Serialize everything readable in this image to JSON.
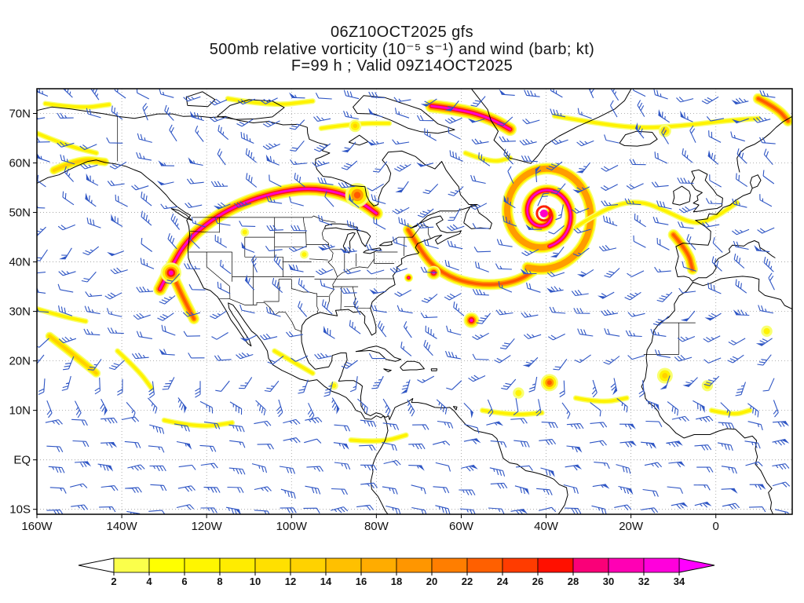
{
  "title": {
    "line1": "06Z10OCT2025 gfs",
    "line2": "500mb relative vorticity (10⁻⁵ s⁻¹) and wind (barb; kt)",
    "line3": "F=99 h ; Valid 09Z14OCT2025"
  },
  "axes": {
    "lat_ticks": [
      {
        "label": "70N",
        "deg": 70
      },
      {
        "label": "60N",
        "deg": 60
      },
      {
        "label": "50N",
        "deg": 50
      },
      {
        "label": "40N",
        "deg": 40
      },
      {
        "label": "30N",
        "deg": 30
      },
      {
        "label": "20N",
        "deg": 20
      },
      {
        "label": "10N",
        "deg": 10
      },
      {
        "label": "EQ",
        "deg": 0
      },
      {
        "label": "10S",
        "deg": -10
      }
    ],
    "lon_ticks": [
      {
        "label": "160W",
        "deg": -160
      },
      {
        "label": "140W",
        "deg": -140
      },
      {
        "label": "120W",
        "deg": -120
      },
      {
        "label": "100W",
        "deg": -100
      },
      {
        "label": "80W",
        "deg": -80
      },
      {
        "label": "60W",
        "deg": -60
      },
      {
        "label": "40W",
        "deg": -40
      },
      {
        "label": "20W",
        "deg": -20
      },
      {
        "label": "0",
        "deg": 0
      }
    ]
  },
  "colorbar": {
    "values": [
      "2",
      "4",
      "6",
      "8",
      "10",
      "12",
      "14",
      "16",
      "18",
      "20",
      "22",
      "24",
      "26",
      "28",
      "30",
      "32",
      "34"
    ],
    "segment_colors": [
      "#FBFF4B",
      "#FFFF00",
      "#FFF600",
      "#FFEC00",
      "#FFE000",
      "#FFD200",
      "#FFC000",
      "#FFAC00",
      "#FF9600",
      "#FF7E00",
      "#FF6000",
      "#FF3C00",
      "#FF1000",
      "#FA0078",
      "#FF00B4",
      "#FF00DC"
    ],
    "below_min_color": "#FFFFFF",
    "above_max_color": "#FF00FF"
  },
  "style": {
    "barb_color": "#2E55C4",
    "grid_color": "#9A9A9A",
    "coast_color": "#000000",
    "frame_color": "#000000",
    "text_color": "#111111"
  },
  "chart_data": {
    "type": "heatmap",
    "model": "gfs",
    "init": "06Z10OCT2025",
    "forecast_hour": "F=99 h",
    "valid": "09Z14OCT2025",
    "level": "500mb",
    "variable": "relative vorticity",
    "units": "10⁻⁵ s⁻¹",
    "wind": {
      "style": "barb",
      "units": "kt"
    },
    "lon_range": [
      -160,
      18
    ],
    "lat_range": [
      -11,
      75
    ],
    "grid_interval_deg": {
      "lat": 10,
      "lon": 20
    },
    "colorbar_levels": [
      2,
      4,
      6,
      8,
      10,
      12,
      14,
      16,
      18,
      20,
      22,
      24,
      26,
      28,
      30,
      32,
      34
    ],
    "vorticity_features": [
      {
        "kind": "streak",
        "intensity": 4,
        "pts": [
          [
            -131,
            34.5
          ],
          [
            -128.6,
            38.5
          ],
          [
            -125,
            44
          ],
          [
            -119,
            48.5
          ],
          [
            -112,
            51.8
          ],
          [
            -104,
            54
          ],
          [
            -96,
            55
          ],
          [
            -88.5,
            54
          ],
          [
            -83.5,
            52
          ],
          [
            -80,
            49.8
          ]
        ]
      },
      {
        "kind": "streak",
        "intensity": 3,
        "pts": [
          [
            -128.6,
            38.5
          ],
          [
            -126.5,
            34.5
          ],
          [
            -124.5,
            31
          ],
          [
            -123,
            28.5
          ]
        ]
      },
      {
        "kind": "blob",
        "intensity": 4,
        "size": 6,
        "center": [
          -128.4,
          37.8
        ]
      },
      {
        "kind": "blob",
        "intensity": 3,
        "size": 7,
        "center": [
          -84.5,
          53.5
        ]
      },
      {
        "kind": "streak",
        "intensity": 2,
        "pts": [
          [
            -156,
            58.5
          ],
          [
            -150,
            60.8
          ],
          [
            -144,
            60.2
          ]
        ]
      },
      {
        "kind": "streak",
        "intensity": 1,
        "pts": [
          [
            -160,
            66
          ],
          [
            -153,
            63.5
          ],
          [
            -146,
            62
          ]
        ]
      },
      {
        "kind": "streak",
        "intensity": 1,
        "pts": [
          [
            -158,
            72
          ],
          [
            -150,
            71
          ],
          [
            -143,
            71.8
          ]
        ]
      },
      {
        "kind": "streak",
        "intensity": 1,
        "pts": [
          [
            -115,
            73
          ],
          [
            -105,
            71.5
          ],
          [
            -95,
            72.5
          ]
        ]
      },
      {
        "kind": "streak",
        "intensity": 1,
        "pts": [
          [
            -93,
            67
          ],
          [
            -85,
            68
          ],
          [
            -77,
            68
          ]
        ]
      },
      {
        "kind": "blob",
        "intensity": 2,
        "size": 4,
        "center": [
          -85,
          67.5
        ]
      },
      {
        "kind": "streak",
        "intensity": 4,
        "pts": [
          [
            -67,
            71.5
          ],
          [
            -60,
            70.8
          ],
          [
            -53,
            69
          ],
          [
            -48.5,
            66.8
          ]
        ]
      },
      {
        "kind": "streak",
        "intensity": 1,
        "pts": [
          [
            -59,
            62
          ],
          [
            -53,
            60
          ],
          [
            -48.5,
            61
          ]
        ]
      },
      {
        "kind": "streak",
        "intensity": 3,
        "pts": [
          [
            -72.5,
            46.5
          ],
          [
            -69,
            41.5
          ],
          [
            -65.5,
            38.3
          ],
          [
            -60,
            36
          ],
          [
            -53,
            35.2
          ],
          [
            -46.5,
            36.2
          ],
          [
            -42.5,
            38.5
          ]
        ]
      },
      {
        "kind": "blob",
        "intensity": 4,
        "size": 4,
        "center": [
          -66.5,
          37.8
        ]
      },
      {
        "kind": "blob",
        "intensity": 4,
        "size": 2.5,
        "center": [
          -72.4,
          36.8
        ]
      },
      {
        "kind": "spiral",
        "intensity": 4,
        "center": [
          -40.5,
          49.8
        ],
        "r0": 1.5,
        "r1": 12.5,
        "turns": 2.3
      },
      {
        "kind": "blob",
        "intensity": 4,
        "size": 4.5,
        "center": [
          -57.6,
          28.2
        ]
      },
      {
        "kind": "blob",
        "intensity": 3,
        "size": 5,
        "center": [
          -39.2,
          15.6
        ]
      },
      {
        "kind": "blob",
        "intensity": 1,
        "size": 4,
        "center": [
          -46.5,
          13.5
        ]
      },
      {
        "kind": "streak",
        "intensity": 1,
        "pts": [
          [
            -55,
            10
          ],
          [
            -48,
            9
          ],
          [
            -41,
            9.5
          ]
        ]
      },
      {
        "kind": "streak",
        "intensity": 1,
        "pts": [
          [
            -33,
            12.5
          ],
          [
            -27,
            11.5
          ],
          [
            -21,
            12.5
          ]
        ]
      },
      {
        "kind": "streak",
        "intensity": 2,
        "pts": [
          [
            -157,
            25
          ],
          [
            -151,
            21
          ],
          [
            -146,
            17.5
          ]
        ]
      },
      {
        "kind": "streak",
        "intensity": 1,
        "pts": [
          [
            -160,
            30.5
          ],
          [
            -154,
            29
          ],
          [
            -148.5,
            28
          ]
        ]
      },
      {
        "kind": "streak",
        "intensity": 1,
        "pts": [
          [
            -141,
            22
          ],
          [
            -136,
            18
          ],
          [
            -133,
            14.5
          ]
        ]
      },
      {
        "kind": "streak",
        "intensity": 1,
        "pts": [
          [
            -130,
            8
          ],
          [
            -122,
            6.5
          ],
          [
            -114,
            7.5
          ]
        ]
      },
      {
        "kind": "streak",
        "intensity": 1,
        "pts": [
          [
            -104,
            22
          ],
          [
            -99,
            19.5
          ],
          [
            -95,
            17.5
          ]
        ]
      },
      {
        "kind": "blob",
        "intensity": 1,
        "size": 3,
        "center": [
          -90,
          15
        ]
      },
      {
        "kind": "streak",
        "intensity": 1,
        "pts": [
          [
            -86,
            4
          ],
          [
            -79,
            3.5
          ],
          [
            -73,
            5
          ]
        ]
      },
      {
        "kind": "streak",
        "intensity": 1,
        "pts": [
          [
            -33,
            47
          ],
          [
            -26,
            51
          ],
          [
            -18,
            52.5
          ],
          [
            -11,
            50
          ],
          [
            -5,
            47.5
          ],
          [
            0,
            49
          ],
          [
            5,
            52
          ]
        ]
      },
      {
        "kind": "streak",
        "intensity": 3,
        "pts": [
          [
            -10,
            45.5
          ],
          [
            -6.5,
            42
          ],
          [
            -5.5,
            38.5
          ]
        ]
      },
      {
        "kind": "streak",
        "intensity": 1,
        "pts": [
          [
            -38,
            69.5
          ],
          [
            -28,
            68
          ],
          [
            -18,
            67
          ],
          [
            -8,
            67.5
          ],
          [
            2,
            68.5
          ],
          [
            10,
            69
          ]
        ]
      },
      {
        "kind": "blob",
        "intensity": 2,
        "size": 4,
        "center": [
          -12,
          66.5
        ]
      },
      {
        "kind": "streak",
        "intensity": 3,
        "pts": [
          [
            10,
            73
          ],
          [
            14.5,
            71
          ],
          [
            17,
            68.5
          ]
        ]
      },
      {
        "kind": "blob",
        "intensity": 2,
        "size": 5,
        "center": [
          -12,
          17
        ]
      },
      {
        "kind": "blob",
        "intensity": 1,
        "size": 4,
        "center": [
          -2,
          15
        ]
      },
      {
        "kind": "streak",
        "intensity": 1,
        "pts": [
          [
            -1,
            10
          ],
          [
            4,
            9
          ],
          [
            8,
            10
          ]
        ]
      },
      {
        "kind": "blob",
        "intensity": 1,
        "size": 4,
        "center": [
          12,
          26
        ]
      },
      {
        "kind": "blob",
        "intensity": 1,
        "size": 3,
        "center": [
          -97,
          41.5
        ]
      },
      {
        "kind": "blob",
        "intensity": 1,
        "size": 3,
        "center": [
          -111,
          46
        ]
      }
    ]
  }
}
